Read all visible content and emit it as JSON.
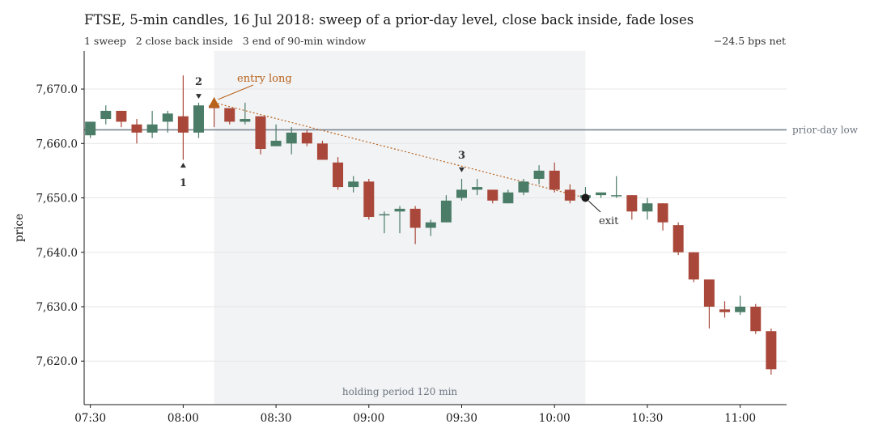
{
  "chart_data": {
    "type": "candlestick",
    "title": "FTSE, 5-min candles, 16 Jul 2018: sweep of a prior-day level, close back inside, fade loses",
    "subtitle": "1 sweep   2 close back inside   3 end of 90-min window",
    "net_result": "−24.5 bps net",
    "ylabel": "price",
    "ylim": [
      7612,
      7677
    ],
    "yticks": [
      7620,
      7630,
      7640,
      7650,
      7660,
      7670
    ],
    "ytick_labels": [
      "7,620.0",
      "7,630.0",
      "7,640.0",
      "7,650.0",
      "7,660.0",
      "7,670.0"
    ],
    "xlim": [
      "07:28",
      "11:15"
    ],
    "xticks": [
      "07:30",
      "08:00",
      "08:30",
      "09:00",
      "09:30",
      "10:00",
      "10:30",
      "11:00"
    ],
    "colors": {
      "up": "#4a7c67",
      "down": "#a9483a",
      "annotation": "#b8621b",
      "reference": "#7a8690",
      "shade": "#f2f3f5",
      "exit": "#1a1a1a"
    },
    "candles": [
      {
        "t": "07:30",
        "o": 7661.5,
        "h": 7664.0,
        "l": 7661.0,
        "c": 7664.0
      },
      {
        "t": "07:35",
        "o": 7664.5,
        "h": 7667.0,
        "l": 7663.5,
        "c": 7666.0
      },
      {
        "t": "07:40",
        "o": 7666.0,
        "h": 7666.0,
        "l": 7663.0,
        "c": 7664.0
      },
      {
        "t": "07:45",
        "o": 7663.5,
        "h": 7664.5,
        "l": 7660.0,
        "c": 7662.0
      },
      {
        "t": "07:50",
        "o": 7662.0,
        "h": 7666.0,
        "l": 7661.0,
        "c": 7663.5
      },
      {
        "t": "07:55",
        "o": 7664.0,
        "h": 7666.0,
        "l": 7662.0,
        "c": 7665.5
      },
      {
        "t": "08:00",
        "o": 7665.0,
        "h": 7672.5,
        "l": 7657.0,
        "c": 7662.0
      },
      {
        "t": "08:05",
        "o": 7662.0,
        "h": 7667.5,
        "l": 7661.0,
        "c": 7667.0
      },
      {
        "t": "08:10",
        "o": 7667.0,
        "h": 7667.5,
        "l": 7663.0,
        "c": 7666.5
      },
      {
        "t": "08:15",
        "o": 7666.5,
        "h": 7666.5,
        "l": 7663.5,
        "c": 7664.0
      },
      {
        "t": "08:20",
        "o": 7664.0,
        "h": 7667.5,
        "l": 7663.5,
        "c": 7664.5
      },
      {
        "t": "08:25",
        "o": 7665.0,
        "h": 7665.0,
        "l": 7658.0,
        "c": 7659.0
      },
      {
        "t": "08:30",
        "o": 7659.5,
        "h": 7663.5,
        "l": 7659.5,
        "c": 7660.5
      },
      {
        "t": "08:35",
        "o": 7660.0,
        "h": 7663.0,
        "l": 7658.0,
        "c": 7662.0
      },
      {
        "t": "08:40",
        "o": 7662.0,
        "h": 7662.5,
        "l": 7659.5,
        "c": 7660.0
      },
      {
        "t": "08:45",
        "o": 7660.0,
        "h": 7660.5,
        "l": 7657.0,
        "c": 7657.0
      },
      {
        "t": "08:50",
        "o": 7656.5,
        "h": 7657.5,
        "l": 7651.5,
        "c": 7652.0
      },
      {
        "t": "08:55",
        "o": 7652.0,
        "h": 7654.0,
        "l": 7651.0,
        "c": 7653.0
      },
      {
        "t": "09:00",
        "o": 7653.0,
        "h": 7653.5,
        "l": 7646.0,
        "c": 7646.5
      },
      {
        "t": "09:05",
        "o": 7647.0,
        "h": 7647.5,
        "l": 7643.5,
        "c": 7647.0
      },
      {
        "t": "09:10",
        "o": 7647.5,
        "h": 7648.5,
        "l": 7643.5,
        "c": 7648.0
      },
      {
        "t": "09:15",
        "o": 7648.0,
        "h": 7648.5,
        "l": 7641.5,
        "c": 7644.5
      },
      {
        "t": "09:20",
        "o": 7644.5,
        "h": 7646.0,
        "l": 7643.0,
        "c": 7645.5
      },
      {
        "t": "09:25",
        "o": 7645.5,
        "h": 7650.5,
        "l": 7645.5,
        "c": 7649.5
      },
      {
        "t": "09:30",
        "o": 7650.0,
        "h": 7653.5,
        "l": 7649.5,
        "c": 7651.5
      },
      {
        "t": "09:35",
        "o": 7651.5,
        "h": 7653.5,
        "l": 7650.5,
        "c": 7652.0
      },
      {
        "t": "09:40",
        "o": 7651.5,
        "h": 7651.5,
        "l": 7649.0,
        "c": 7649.5
      },
      {
        "t": "09:45",
        "o": 7649.0,
        "h": 7651.5,
        "l": 7649.0,
        "c": 7651.0
      },
      {
        "t": "09:50",
        "o": 7651.0,
        "h": 7653.5,
        "l": 7650.5,
        "c": 7653.0
      },
      {
        "t": "09:55",
        "o": 7653.5,
        "h": 7656.0,
        "l": 7652.5,
        "c": 7655.0
      },
      {
        "t": "10:00",
        "o": 7655.0,
        "h": 7656.5,
        "l": 7651.0,
        "c": 7651.5
      },
      {
        "t": "10:05",
        "o": 7651.5,
        "h": 7652.5,
        "l": 7649.0,
        "c": 7649.5
      },
      {
        "t": "10:10",
        "o": 7650.0,
        "h": 7652.0,
        "l": 7649.5,
        "c": 7650.5
      },
      {
        "t": "10:15",
        "o": 7650.5,
        "h": 7651.0,
        "l": 7650.0,
        "c": 7651.0
      },
      {
        "t": "10:20",
        "o": 7650.5,
        "h": 7654.0,
        "l": 7650.0,
        "c": 7650.5
      },
      {
        "t": "10:25",
        "o": 7650.5,
        "h": 7650.5,
        "l": 7646.0,
        "c": 7647.5
      },
      {
        "t": "10:30",
        "o": 7647.5,
        "h": 7650.0,
        "l": 7646.0,
        "c": 7649.0
      },
      {
        "t": "10:35",
        "o": 7649.0,
        "h": 7649.0,
        "l": 7644.0,
        "c": 7645.5
      },
      {
        "t": "10:40",
        "o": 7645.0,
        "h": 7645.5,
        "l": 7639.5,
        "c": 7640.0
      },
      {
        "t": "10:45",
        "o": 7640.0,
        "h": 7640.0,
        "l": 7634.5,
        "c": 7635.0
      },
      {
        "t": "10:50",
        "o": 7635.0,
        "h": 7635.0,
        "l": 7626.0,
        "c": 7630.0
      },
      {
        "t": "10:55",
        "o": 7629.5,
        "h": 7631.0,
        "l": 7628.0,
        "c": 7629.0
      },
      {
        "t": "11:00",
        "o": 7629.0,
        "h": 7632.0,
        "l": 7628.5,
        "c": 7630.0
      },
      {
        "t": "11:05",
        "o": 7630.0,
        "h": 7630.5,
        "l": 7625.0,
        "c": 7625.5
      },
      {
        "t": "11:10",
        "o": 7625.5,
        "h": 7626.0,
        "l": 7617.5,
        "c": 7618.5
      }
    ],
    "prior_day_low": {
      "value": 7662.5,
      "label": "prior-day low"
    },
    "holding_period": {
      "start": "08:10",
      "end": "10:10",
      "label": "holding period 120 min"
    },
    "entry": {
      "t": "08:10",
      "price": 7667.5,
      "label": "entry long"
    },
    "exit": {
      "t": "10:10",
      "price": 7650.0,
      "label": "exit"
    },
    "markers": [
      {
        "n": "1",
        "t": "08:00",
        "price": 7656.0,
        "side": "below"
      },
      {
        "n": "2",
        "t": "08:05",
        "price": 7668.5,
        "side": "above"
      },
      {
        "n": "3",
        "t": "09:30",
        "price": 7655.0,
        "side": "above"
      }
    ]
  }
}
